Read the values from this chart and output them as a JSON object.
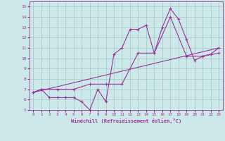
{
  "xlabel": "Windchill (Refroidissement éolien,°C)",
  "ylabel": "",
  "xlim": [
    -0.5,
    23.5
  ],
  "ylim": [
    5,
    15.5
  ],
  "xticks": [
    0,
    1,
    2,
    3,
    4,
    5,
    6,
    7,
    8,
    9,
    10,
    11,
    12,
    13,
    14,
    15,
    16,
    17,
    18,
    19,
    20,
    21,
    22,
    23
  ],
  "yticks": [
    5,
    6,
    7,
    8,
    9,
    10,
    11,
    12,
    13,
    14,
    15
  ],
  "background_color": "#cce8e8",
  "grid_color": "#aacccc",
  "line_color": "#993399",
  "series": [
    {
      "x": [
        0,
        1,
        2,
        3,
        4,
        5,
        6,
        7,
        8,
        9,
        10,
        11,
        12,
        13,
        14,
        15,
        16,
        17,
        18,
        19,
        20,
        21,
        22,
        23
      ],
      "y": [
        6.7,
        7.0,
        6.2,
        6.2,
        6.2,
        6.2,
        5.8,
        5.0,
        7.0,
        5.8,
        10.4,
        11.0,
        12.8,
        12.8,
        13.2,
        10.5,
        13.0,
        14.8,
        13.8,
        11.8,
        9.8,
        10.2,
        10.4,
        11.0
      ],
      "marker": true
    },
    {
      "x": [
        0,
        1,
        3,
        5,
        7,
        9,
        11,
        13,
        15,
        17,
        19,
        21,
        23
      ],
      "y": [
        6.7,
        7.0,
        7.0,
        7.0,
        7.5,
        7.5,
        7.5,
        10.5,
        10.5,
        14.0,
        10.2,
        10.2,
        10.5
      ],
      "marker": true
    },
    {
      "x": [
        0,
        23
      ],
      "y": [
        6.7,
        11.0
      ],
      "marker": false
    }
  ]
}
